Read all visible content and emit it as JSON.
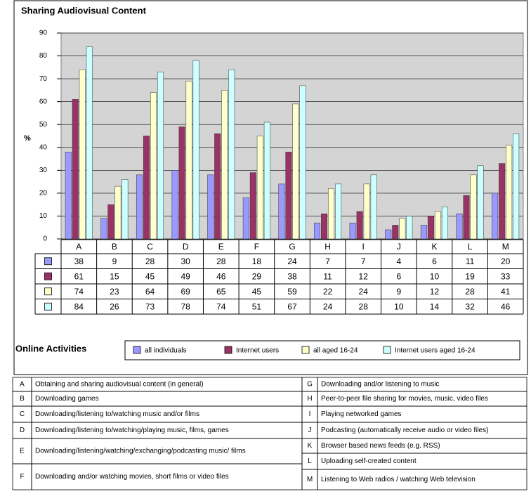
{
  "chart_data": {
    "type": "bar",
    "title": "Sharing Audiovisual Content",
    "ylabel": "%",
    "categories": [
      "A",
      "B",
      "C",
      "D",
      "E",
      "F",
      "G",
      "H",
      "I",
      "J",
      "K",
      "L",
      "M"
    ],
    "series": [
      {
        "name": "all individuals",
        "color": "#9999ff",
        "values": [
          38,
          9,
          28,
          30,
          28,
          18,
          24,
          7,
          7,
          4,
          6,
          11,
          20
        ]
      },
      {
        "name": "Internet users",
        "color": "#993366",
        "values": [
          61,
          15,
          45,
          49,
          46,
          29,
          38,
          11,
          12,
          6,
          10,
          19,
          33
        ]
      },
      {
        "name": "all aged 16-24",
        "color": "#ffffcc",
        "values": [
          74,
          23,
          64,
          69,
          65,
          45,
          59,
          22,
          24,
          9,
          12,
          28,
          41
        ]
      },
      {
        "name": "Internet users aged 16-24",
        "color": "#ccffff",
        "values": [
          84,
          26,
          73,
          78,
          74,
          51,
          67,
          24,
          28,
          10,
          14,
          32,
          46
        ]
      }
    ],
    "ylim": [
      0,
      90
    ],
    "yticks": [
      0,
      10,
      20,
      30,
      40,
      50,
      60,
      70,
      80,
      90
    ],
    "grid": true
  },
  "legend_title": "Online Activities",
  "activities": [
    {
      "key": "A",
      "description": "Obtaining and sharing audiovisual content (in general)"
    },
    {
      "key": "B",
      "description": "Downloading games"
    },
    {
      "key": "C",
      "description": "Downloading/listening to/watching music and/or films"
    },
    {
      "key": "D",
      "description": "Downloading/listening to/watching/playing music, films, games"
    },
    {
      "key": "E",
      "description": "Downloading/listening/watching/exchanging/podcasting music/ films"
    },
    {
      "key": "F",
      "description": "Downloading and/or watching movies, short films or video files"
    },
    {
      "key": "G",
      "description": "Downloading and/or listening to music"
    },
    {
      "key": "H",
      "description": "Peer-to-peer file sharing for movies, music, video files"
    },
    {
      "key": "I",
      "description": "Playing networked games"
    },
    {
      "key": "J",
      "description": "Podcasting (automatically receive audio or video files)"
    },
    {
      "key": "K",
      "description": "Browser based news feeds (e.g. RSS)"
    },
    {
      "key": "L",
      "description": "Uploading self-created content"
    },
    {
      "key": "M",
      "description": "Listening to Web radios / watching Web television"
    }
  ]
}
